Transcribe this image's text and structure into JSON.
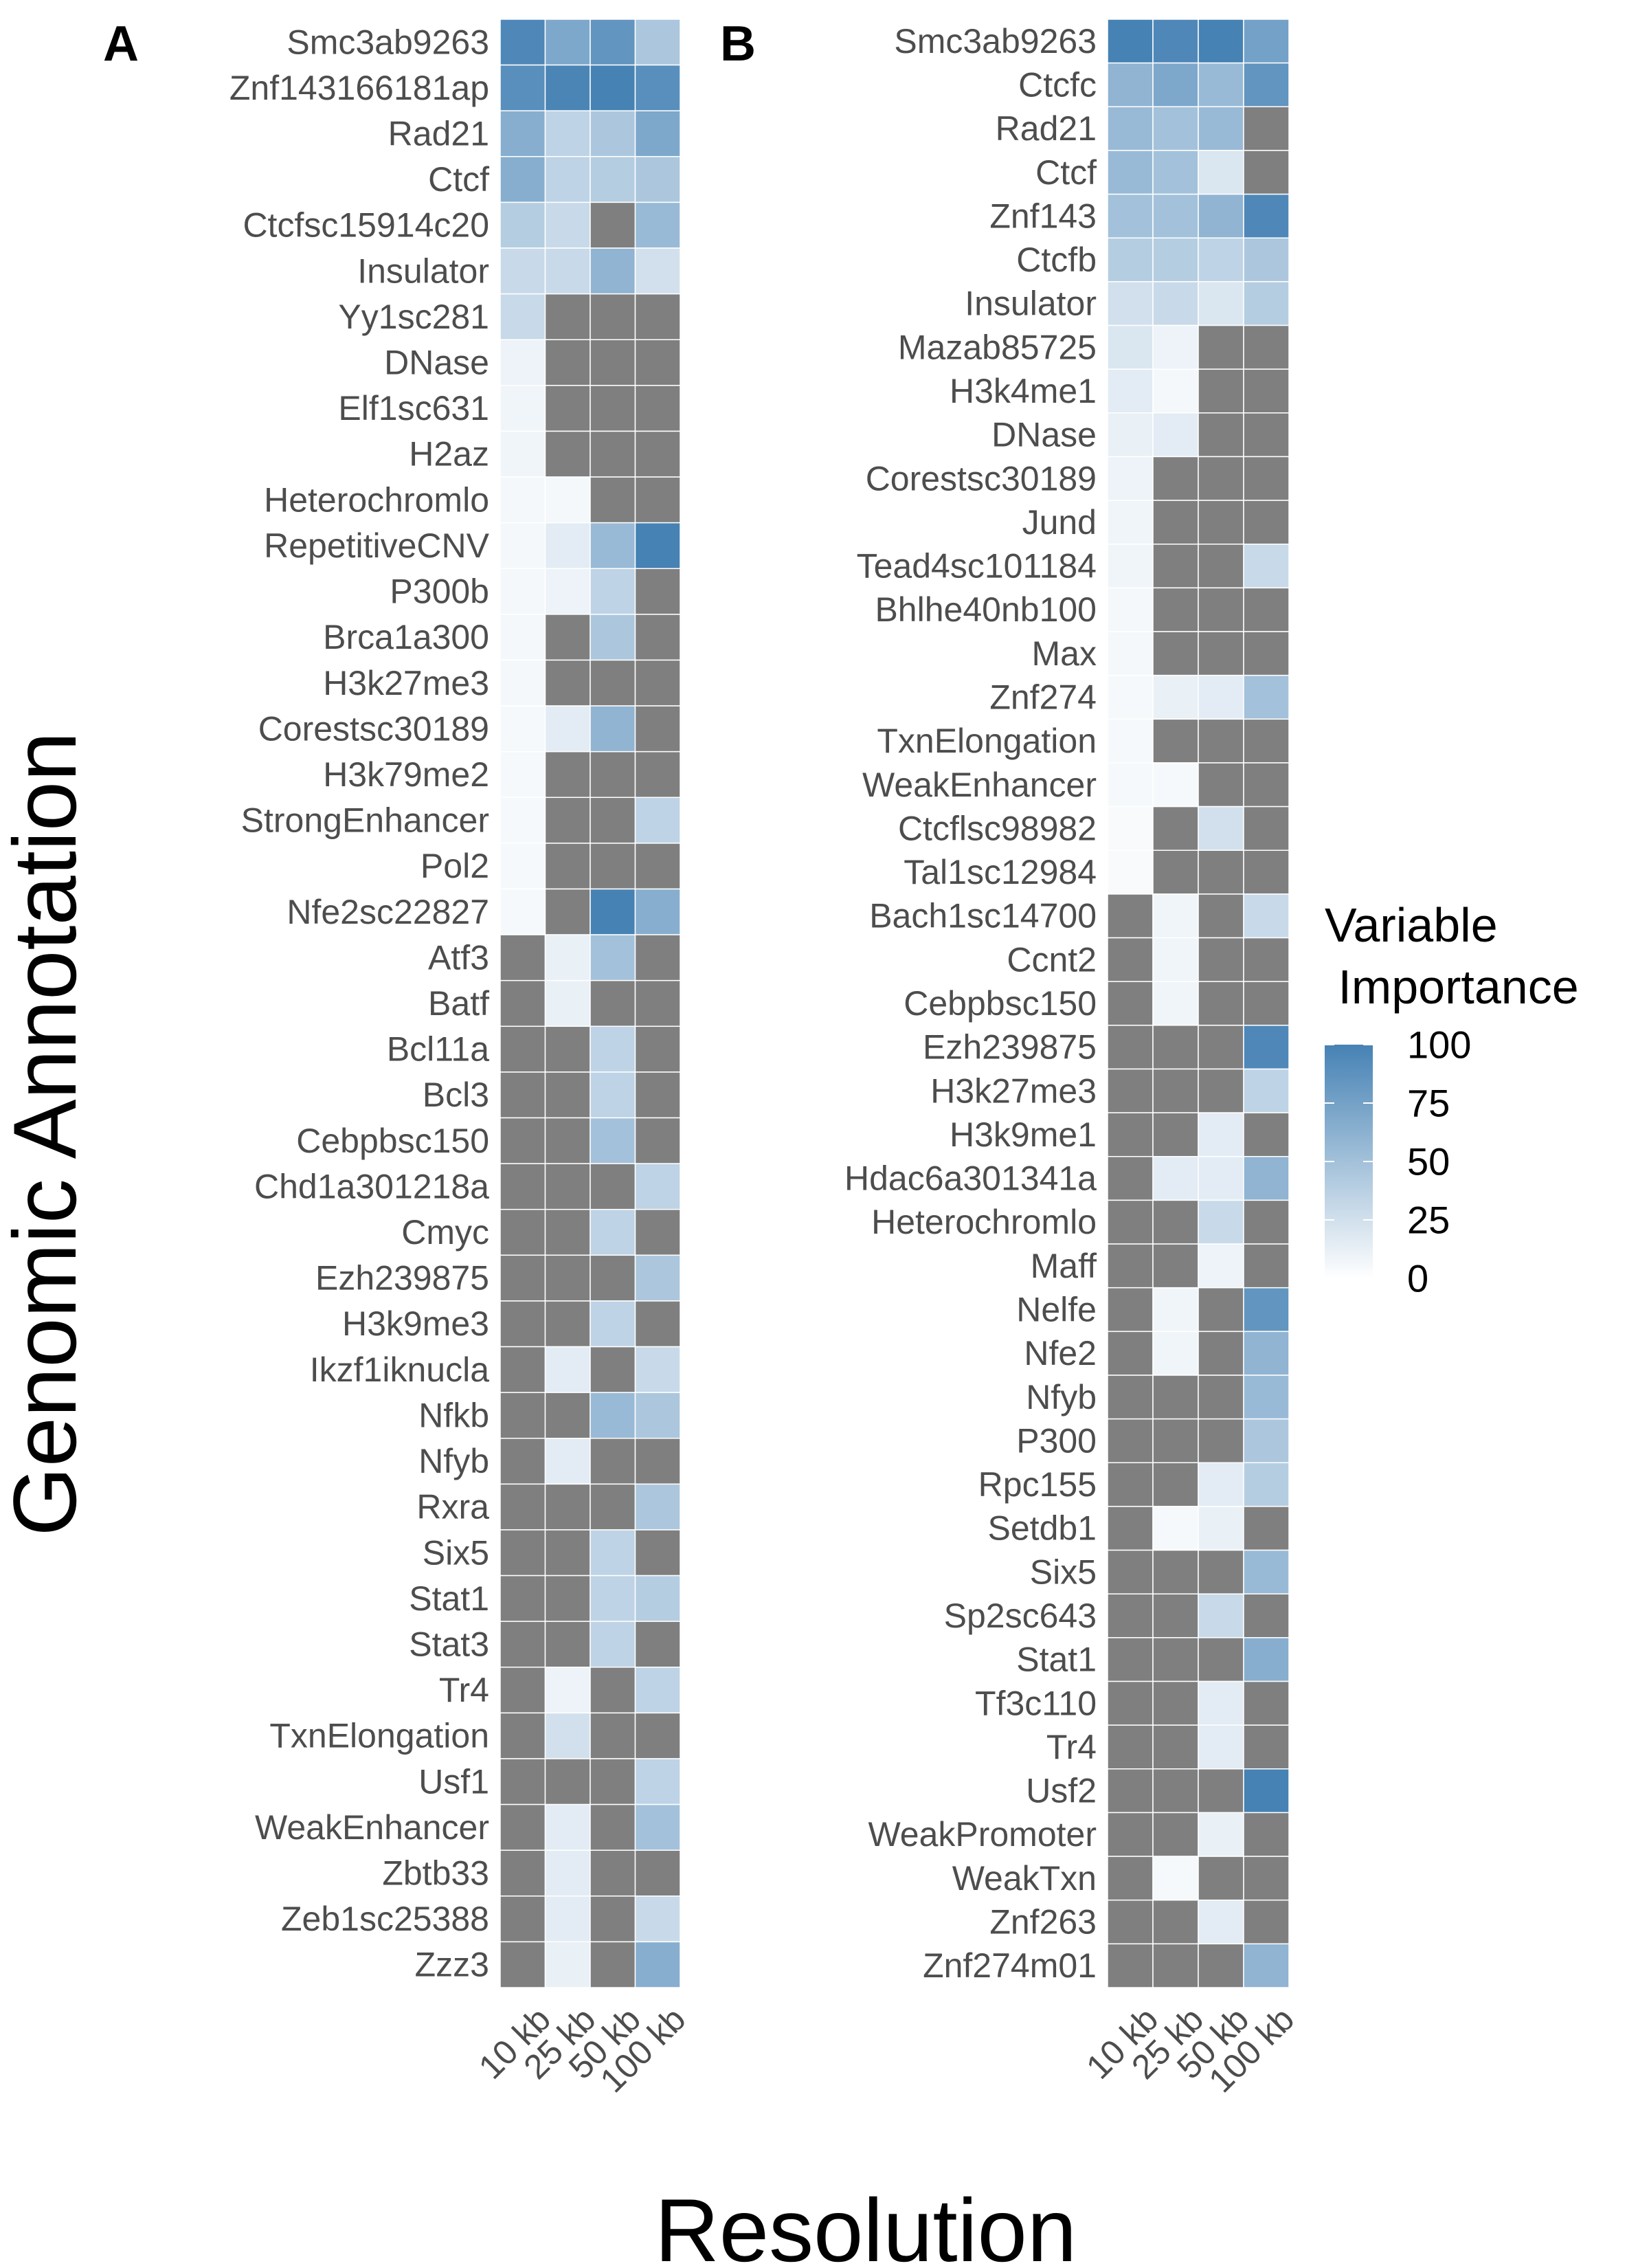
{
  "ylabel": "Genomic Annotation",
  "xlabel": "Resolution",
  "legend": {
    "title_line1": "Variable",
    "title_line2": " Importance",
    "ticks": [
      100,
      75,
      50,
      25,
      0
    ],
    "color_low": "#ffffff",
    "color_high": "#4682b4",
    "missing_color": "#7f7f7f",
    "placement": "right"
  },
  "chart_data": [
    {
      "type": "heatmap",
      "panel": "A",
      "categories": [
        "10 kb",
        "25 kb",
        "50 kb",
        "100 kb"
      ],
      "rows": [
        {
          "name": "Smc3ab9263",
          "values": [
            95,
            70,
            85,
            45
          ]
        },
        {
          "name": "Znf143166181ap",
          "values": [
            90,
            98,
            100,
            90
          ]
        },
        {
          "name": "Rad21",
          "values": [
            65,
            35,
            45,
            70
          ]
        },
        {
          "name": "Ctcf",
          "values": [
            65,
            35,
            40,
            45
          ]
        },
        {
          "name": "Ctcfsc15914c20",
          "values": [
            40,
            30,
            null,
            55
          ]
        },
        {
          "name": "Insulator",
          "values": [
            30,
            30,
            60,
            25
          ]
        },
        {
          "name": "Yy1sc281",
          "values": [
            30,
            null,
            null,
            null
          ]
        },
        {
          "name": "DNase",
          "values": [
            10,
            null,
            null,
            null
          ]
        },
        {
          "name": "Elf1sc631",
          "values": [
            8,
            null,
            null,
            null
          ]
        },
        {
          "name": "H2az",
          "values": [
            8,
            null,
            null,
            null
          ]
        },
        {
          "name": "Heterochromlo",
          "values": [
            6,
            6,
            null,
            null
          ]
        },
        {
          "name": "RepetitiveCNV",
          "values": [
            6,
            15,
            55,
            100
          ]
        },
        {
          "name": "P300b",
          "values": [
            6,
            10,
            35,
            null
          ]
        },
        {
          "name": "Brca1a300",
          "values": [
            6,
            null,
            45,
            null
          ]
        },
        {
          "name": "H3k27me3",
          "values": [
            6,
            null,
            null,
            null
          ]
        },
        {
          "name": "Corestsc30189",
          "values": [
            5,
            15,
            60,
            null
          ]
        },
        {
          "name": "H3k79me2",
          "values": [
            5,
            null,
            null,
            null
          ]
        },
        {
          "name": "StrongEnhancer",
          "values": [
            5,
            null,
            null,
            35
          ]
        },
        {
          "name": "Pol2",
          "values": [
            5,
            null,
            null,
            null
          ]
        },
        {
          "name": "Nfe2sc22827",
          "values": [
            5,
            null,
            100,
            65
          ]
        },
        {
          "name": "Atf3",
          "values": [
            null,
            12,
            50,
            null
          ]
        },
        {
          "name": "Batf",
          "values": [
            null,
            12,
            null,
            null
          ]
        },
        {
          "name": "Bcl11a",
          "values": [
            null,
            null,
            35,
            null
          ]
        },
        {
          "name": "Bcl3",
          "values": [
            null,
            null,
            35,
            null
          ]
        },
        {
          "name": "Cebpbsc150",
          "values": [
            null,
            null,
            50,
            null
          ]
        },
        {
          "name": "Chd1a301218a",
          "values": [
            null,
            null,
            null,
            35
          ]
        },
        {
          "name": "Cmyc",
          "values": [
            null,
            null,
            35,
            null
          ]
        },
        {
          "name": "Ezh239875",
          "values": [
            null,
            null,
            null,
            45
          ]
        },
        {
          "name": "H3k9me3",
          "values": [
            null,
            null,
            35,
            null
          ]
        },
        {
          "name": "Ikzf1iknucla",
          "values": [
            null,
            15,
            null,
            30
          ]
        },
        {
          "name": "Nfkb",
          "values": [
            null,
            null,
            55,
            45
          ]
        },
        {
          "name": "Nfyb",
          "values": [
            null,
            15,
            null,
            null
          ]
        },
        {
          "name": "Rxra",
          "values": [
            null,
            null,
            null,
            45
          ]
        },
        {
          "name": "Six5",
          "values": [
            null,
            null,
            35,
            null
          ]
        },
        {
          "name": "Stat1",
          "values": [
            null,
            null,
            35,
            40
          ]
        },
        {
          "name": "Stat3",
          "values": [
            null,
            null,
            35,
            null
          ]
        },
        {
          "name": "Tr4",
          "values": [
            null,
            10,
            null,
            35
          ]
        },
        {
          "name": "TxnElongation",
          "values": [
            null,
            25,
            null,
            null
          ]
        },
        {
          "name": "Usf1",
          "values": [
            null,
            null,
            null,
            35
          ]
        },
        {
          "name": "WeakEnhancer",
          "values": [
            null,
            15,
            null,
            50
          ]
        },
        {
          "name": "Zbtb33",
          "values": [
            null,
            15,
            null,
            null
          ]
        },
        {
          "name": "Zeb1sc25388",
          "values": [
            null,
            15,
            null,
            30
          ]
        },
        {
          "name": "Zzz3",
          "values": [
            null,
            12,
            null,
            65
          ]
        }
      ]
    },
    {
      "type": "heatmap",
      "panel": "B",
      "categories": [
        "10 kb",
        "25 kb",
        "50 kb",
        "100 kb"
      ],
      "rows": [
        {
          "name": "Smc3ab9263",
          "values": [
            100,
            95,
            100,
            75
          ]
        },
        {
          "name": "Ctcfc",
          "values": [
            60,
            70,
            55,
            85
          ]
        },
        {
          "name": "Rad21",
          "values": [
            55,
            50,
            55,
            null
          ]
        },
        {
          "name": "Ctcf",
          "values": [
            55,
            50,
            20,
            null
          ]
        },
        {
          "name": "Znf143",
          "values": [
            50,
            50,
            60,
            95
          ]
        },
        {
          "name": "Ctcfb",
          "values": [
            40,
            40,
            35,
            45
          ]
        },
        {
          "name": "Insulator",
          "values": [
            25,
            30,
            20,
            40
          ]
        },
        {
          "name": "Mazab85725",
          "values": [
            20,
            10,
            null,
            null
          ]
        },
        {
          "name": "H3k4me1",
          "values": [
            15,
            6,
            null,
            null
          ]
        },
        {
          "name": "DNase",
          "values": [
            12,
            15,
            null,
            null
          ]
        },
        {
          "name": "Corestsc30189",
          "values": [
            10,
            null,
            null,
            null
          ]
        },
        {
          "name": "Jund",
          "values": [
            8,
            null,
            null,
            null
          ]
        },
        {
          "name": "Tead4sc101184",
          "values": [
            8,
            null,
            null,
            30
          ]
        },
        {
          "name": "Bhlhe40nb100",
          "values": [
            6,
            null,
            null,
            null
          ]
        },
        {
          "name": "Max",
          "values": [
            6,
            null,
            null,
            null
          ]
        },
        {
          "name": "Znf274",
          "values": [
            5,
            12,
            15,
            50
          ]
        },
        {
          "name": "TxnElongation",
          "values": [
            5,
            null,
            null,
            null
          ]
        },
        {
          "name": "WeakEnhancer",
          "values": [
            5,
            5,
            null,
            null
          ]
        },
        {
          "name": "Ctcflsc98982",
          "values": [
            4,
            null,
            25,
            null
          ]
        },
        {
          "name": "Tal1sc12984",
          "values": [
            4,
            null,
            null,
            null
          ]
        },
        {
          "name": "Bach1sc14700",
          "values": [
            null,
            8,
            null,
            30
          ]
        },
        {
          "name": "Ccnt2",
          "values": [
            null,
            8,
            null,
            null
          ]
        },
        {
          "name": "Cebpbsc150",
          "values": [
            null,
            8,
            null,
            null
          ]
        },
        {
          "name": "Ezh239875",
          "values": [
            null,
            null,
            null,
            95
          ]
        },
        {
          "name": "H3k27me3",
          "values": [
            null,
            null,
            null,
            35
          ]
        },
        {
          "name": "H3k9me1",
          "values": [
            null,
            null,
            15,
            null
          ]
        },
        {
          "name": "Hdac6a301341a",
          "values": [
            null,
            15,
            15,
            60
          ]
        },
        {
          "name": "Heterochromlo",
          "values": [
            null,
            null,
            30,
            null
          ]
        },
        {
          "name": "Maff",
          "values": [
            null,
            null,
            10,
            null
          ]
        },
        {
          "name": "Nelfe",
          "values": [
            null,
            8,
            null,
            85
          ]
        },
        {
          "name": "Nfe2",
          "values": [
            null,
            8,
            null,
            60
          ]
        },
        {
          "name": "Nfyb",
          "values": [
            null,
            null,
            null,
            55
          ]
        },
        {
          "name": "P300",
          "values": [
            null,
            null,
            null,
            45
          ]
        },
        {
          "name": "Rpc155",
          "values": [
            null,
            null,
            15,
            40
          ]
        },
        {
          "name": "Setdb1",
          "values": [
            null,
            5,
            12,
            null
          ]
        },
        {
          "name": "Six5",
          "values": [
            null,
            null,
            null,
            55
          ]
        },
        {
          "name": "Sp2sc643",
          "values": [
            null,
            null,
            30,
            null
          ]
        },
        {
          "name": "Stat1",
          "values": [
            null,
            null,
            null,
            65
          ]
        },
        {
          "name": "Tf3c110",
          "values": [
            null,
            null,
            15,
            null
          ]
        },
        {
          "name": "Tr4",
          "values": [
            null,
            null,
            15,
            null
          ]
        },
        {
          "name": "Usf2",
          "values": [
            null,
            null,
            null,
            100
          ]
        },
        {
          "name": "WeakPromoter",
          "values": [
            null,
            null,
            12,
            null
          ]
        },
        {
          "name": "WeakTxn",
          "values": [
            null,
            5,
            null,
            null
          ]
        },
        {
          "name": "Znf263",
          "values": [
            null,
            null,
            15,
            null
          ]
        },
        {
          "name": "Znf274m01",
          "values": [
            null,
            null,
            null,
            60
          ]
        }
      ]
    }
  ]
}
